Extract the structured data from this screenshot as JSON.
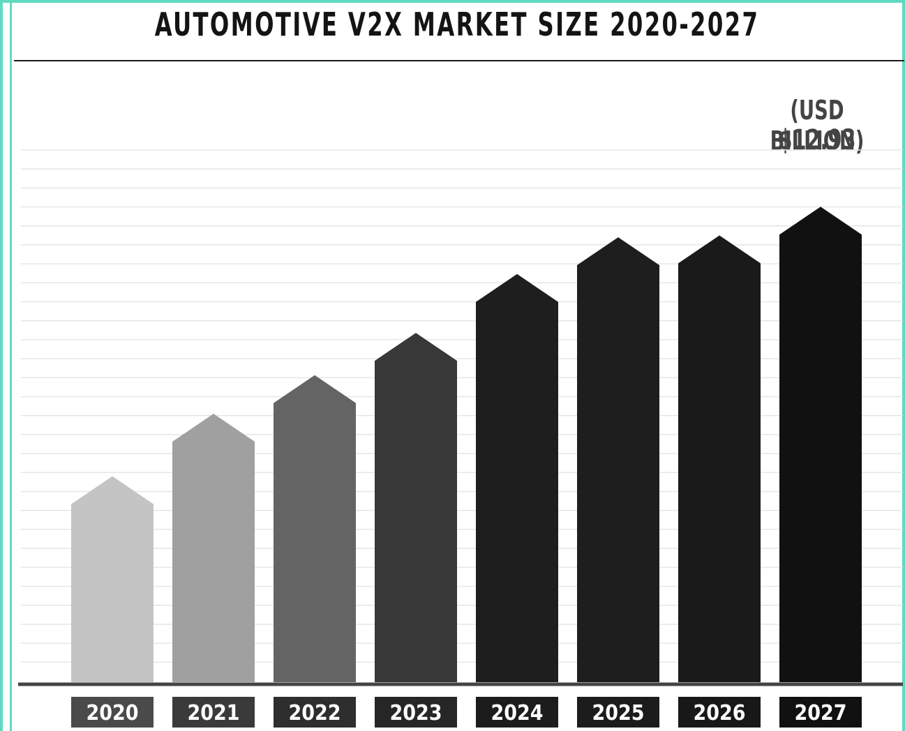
{
  "chart_data": {
    "type": "bar",
    "title": "AUTOMOTIVE V2X MARKET SIZE 2020-2027",
    "unit_label": "(USD BILLION)",
    "last_value_label": "$12.93",
    "categories": [
      "2020",
      "2021",
      "2022",
      "2023",
      "2024",
      "2025",
      "2026",
      "2027"
    ],
    "values": [
      5.6,
      7.3,
      8.35,
      9.5,
      11.1,
      12.1,
      12.15,
      12.93
    ],
    "ylim": [
      0,
      14
    ],
    "grid": true,
    "bar_colors": [
      "#c4c4c4",
      "#a0a0a0",
      "#646464",
      "#383838",
      "#1e1e1e",
      "#1e1e1e",
      "#1a1a1a",
      "#111111"
    ],
    "label_box_colors": [
      "#4a4a4a",
      "#3a3a3a",
      "#2e2e2e",
      "#262626",
      "#1c1c1c",
      "#1c1c1c",
      "#181818",
      "#111111"
    ]
  }
}
